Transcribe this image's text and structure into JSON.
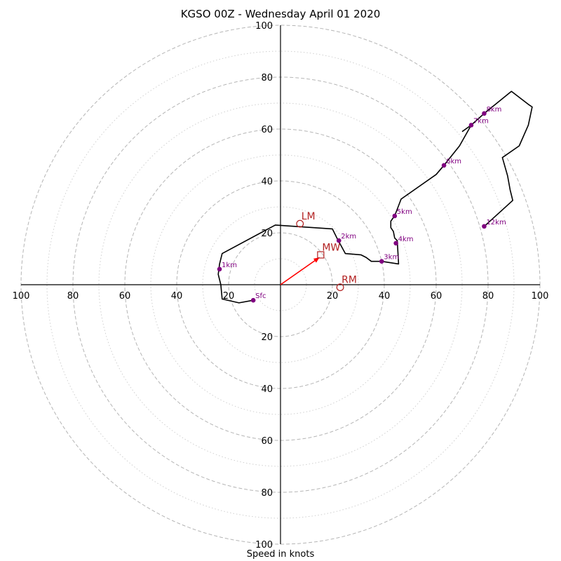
{
  "title": "KGSO 00Z - Wednesday April 01 2020",
  "chart_data": {
    "type": "hodograph",
    "title": "KGSO 00Z - Wednesday April 01 2020",
    "xlabel": "Speed in knots",
    "range": [
      -100,
      100
    ],
    "solid_rings": [
      20,
      40,
      60,
      80,
      100
    ],
    "dotted_rings": [
      10,
      30,
      50,
      70,
      90
    ],
    "tick_labels": [
      "100",
      "80",
      "60",
      "40",
      "20",
      "20",
      "40",
      "60",
      "80",
      "100"
    ],
    "y_tick_labels": [
      "100",
      "80",
      "60",
      "40",
      "20",
      "20",
      "40",
      "60",
      "80",
      "100"
    ],
    "trace_color": "#000000",
    "trace": [
      [
        -10.5,
        -6
      ],
      [
        -16,
        -7
      ],
      [
        -22.5,
        -5.5
      ],
      [
        -23,
        0
      ],
      [
        -24,
        4
      ],
      [
        -23.5,
        8
      ],
      [
        -22.5,
        12
      ],
      [
        -2,
        23
      ],
      [
        20,
        21.5
      ],
      [
        22,
        17.5
      ],
      [
        25,
        12
      ],
      [
        31,
        11.5
      ],
      [
        33,
        10.5
      ],
      [
        35,
        9
      ],
      [
        39,
        9
      ],
      [
        45.5,
        8
      ],
      [
        45,
        17
      ],
      [
        44,
        18
      ],
      [
        43.5,
        20.5
      ],
      [
        42.5,
        22
      ],
      [
        42.5,
        24.5
      ],
      [
        44,
        26.5
      ],
      [
        46.5,
        33
      ],
      [
        60,
        42.5
      ],
      [
        63,
        46
      ],
      [
        69,
        53.5
      ],
      [
        73.5,
        61.5
      ],
      [
        78.5,
        66
      ],
      [
        89,
        74.5
      ],
      [
        95.5,
        69.5
      ],
      [
        97,
        68.5
      ],
      [
        95.5,
        61.5
      ],
      [
        92,
        53.5
      ],
      [
        85.5,
        49
      ],
      [
        87.5,
        42
      ],
      [
        88.5,
        36.5
      ],
      [
        89.5,
        32.5
      ],
      [
        78.5,
        22.5
      ]
    ],
    "trace_tail": [
      [
        73.5,
        61.5
      ],
      [
        70,
        59
      ]
    ],
    "height_markers": [
      {
        "label": "Sfc",
        "u": -10.5,
        "v": -6
      },
      {
        "label": "1km",
        "u": -23.5,
        "v": 6
      },
      {
        "label": "2km",
        "u": 22.5,
        "v": 17
      },
      {
        "label": "3km",
        "u": 39,
        "v": 9
      },
      {
        "label": "4km",
        "u": 44.5,
        "v": 16
      },
      {
        "label": "5km",
        "u": 44,
        "v": 26.5
      },
      {
        "label": "6km",
        "u": 63,
        "v": 46
      },
      {
        "label": "7km",
        "u": 73.5,
        "v": 61.5
      },
      {
        "label": "8km",
        "u": 78.5,
        "v": 66
      },
      {
        "label": "12km",
        "u": 78.5,
        "v": 22.5
      }
    ],
    "marker_color": "#800080",
    "motion_color": "#b22222",
    "storm_motion": [
      {
        "label": "LM",
        "u": 7.5,
        "v": 23.5,
        "shape": "circle"
      },
      {
        "label": "RM",
        "u": 23,
        "v": -1,
        "shape": "circle"
      },
      {
        "label": "MW",
        "u": 15.5,
        "v": 11.5,
        "shape": "square"
      }
    ],
    "mean_wind_vector": {
      "u": 15,
      "v": 10.5,
      "color": "#ff0000"
    }
  }
}
